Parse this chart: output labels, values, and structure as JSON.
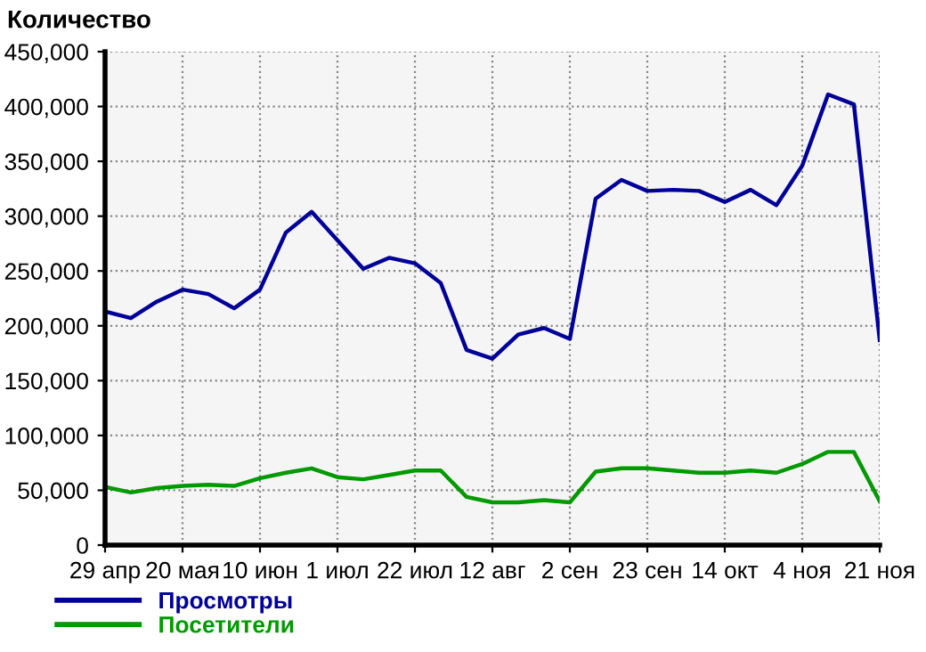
{
  "chart_data": {
    "type": "line",
    "ylabel": "Количество",
    "categories": [
      "29 апр",
      null,
      null,
      "20 мая",
      null,
      null,
      "10 июн",
      null,
      null,
      "1 июл",
      null,
      null,
      "22 июл",
      null,
      null,
      "12 авг",
      null,
      null,
      "2 сен",
      null,
      null,
      "23 сен",
      null,
      null,
      "14 окт",
      null,
      null,
      "4 ноя",
      null,
      null,
      "21 ноя"
    ],
    "series": [
      {
        "name": "Просмотры",
        "color": "#000099",
        "values": [
          213000,
          207000,
          222000,
          233000,
          229000,
          216000,
          233000,
          285000,
          304000,
          278000,
          252000,
          262000,
          257000,
          239000,
          178000,
          170000,
          192000,
          198000,
          188000,
          316000,
          333000,
          323000,
          324000,
          323000,
          313000,
          324000,
          310000,
          346000,
          411000,
          402000,
          187000
        ]
      },
      {
        "name": "Посетители",
        "color": "#009900",
        "values": [
          53000,
          48000,
          52000,
          54000,
          55000,
          54000,
          61000,
          66000,
          70000,
          62000,
          60000,
          64000,
          68000,
          68000,
          44000,
          39000,
          39000,
          41000,
          39000,
          67000,
          70000,
          70000,
          68000,
          66000,
          66000,
          68000,
          66000,
          74000,
          85000,
          85000,
          40000
        ]
      }
    ],
    "ylim": [
      0,
      450000
    ],
    "yticks": [
      {
        "value": 0,
        "label": "0"
      },
      {
        "value": 50000,
        "label": "50,000"
      },
      {
        "value": 100000,
        "label": "100,000"
      },
      {
        "value": 150000,
        "label": "150,000"
      },
      {
        "value": 200000,
        "label": "200,000"
      },
      {
        "value": 250000,
        "label": "250,000"
      },
      {
        "value": 300000,
        "label": "300,000"
      },
      {
        "value": 350000,
        "label": "350,000"
      },
      {
        "value": 400000,
        "label": "400,000"
      },
      {
        "value": 450000,
        "label": "450,000"
      }
    ],
    "grid": true,
    "legend": "bottom left",
    "marker": "none",
    "line_style": "solid"
  }
}
